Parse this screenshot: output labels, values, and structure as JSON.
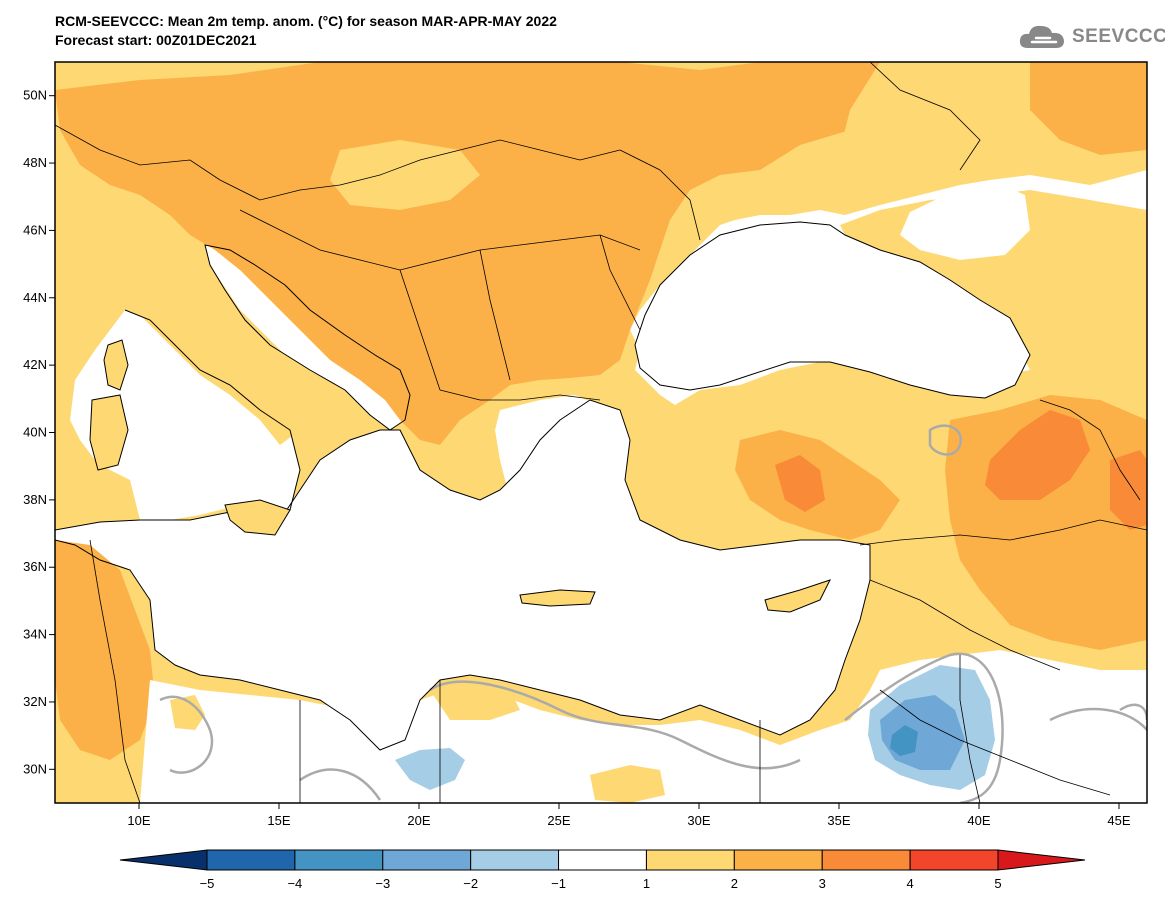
{
  "title": {
    "line1": "RCM-SEEVCCC: Mean 2m temp. anom. (°C) for season MAR-APR-MAY 2022",
    "line2": "Forecast start: 00Z01DEC2021"
  },
  "logo": {
    "text": "SEEVCCC",
    "icon": "cloud-icon"
  },
  "axes": {
    "lat_labels": [
      "50N",
      "48N",
      "46N",
      "44N",
      "42N",
      "40N",
      "38N",
      "36N",
      "34N",
      "32N",
      "30N"
    ],
    "lon_labels": [
      "10E",
      "15E",
      "20E",
      "25E",
      "30E",
      "35E",
      "40E",
      "45E"
    ],
    "lat_range": [
      29,
      51
    ],
    "lon_range": [
      7,
      46
    ]
  },
  "legend": {
    "labels": [
      "-5",
      "-4",
      "-3",
      "-2",
      "-1",
      "1",
      "2",
      "3",
      "4",
      "5"
    ],
    "bins": [
      {
        "range": "< -5",
        "color": "#08306b"
      },
      {
        "range": "-5 to -4",
        "color": "#2166ac"
      },
      {
        "range": "-4 to -3",
        "color": "#4393c3"
      },
      {
        "range": "-3 to -2",
        "color": "#6fa8d6"
      },
      {
        "range": "-2 to -1",
        "color": "#a6cde6"
      },
      {
        "range": "-1 to 1",
        "color": "#ffffff"
      },
      {
        "range": "1 to 2",
        "color": "#fdd873"
      },
      {
        "range": "2 to 3",
        "color": "#fbb148"
      },
      {
        "range": "3 to 4",
        "color": "#f98a38"
      },
      {
        "range": "4 to 5",
        "color": "#f2452a"
      },
      {
        "range": "> 5",
        "color": "#d7191c"
      }
    ]
  },
  "colors": {
    "sea": "#ffffff",
    "anomaly_1_2": "#fdd873",
    "anomaly_2_3": "#fbb148",
    "anomaly_3_4": "#f98a38",
    "anomaly_neg_1_2": "#a6cde6",
    "anomaly_neg_2_3": "#6fa8d6",
    "anomaly_neg_3_4": "#4393c3",
    "contour_zero": "#aaaaaa"
  }
}
